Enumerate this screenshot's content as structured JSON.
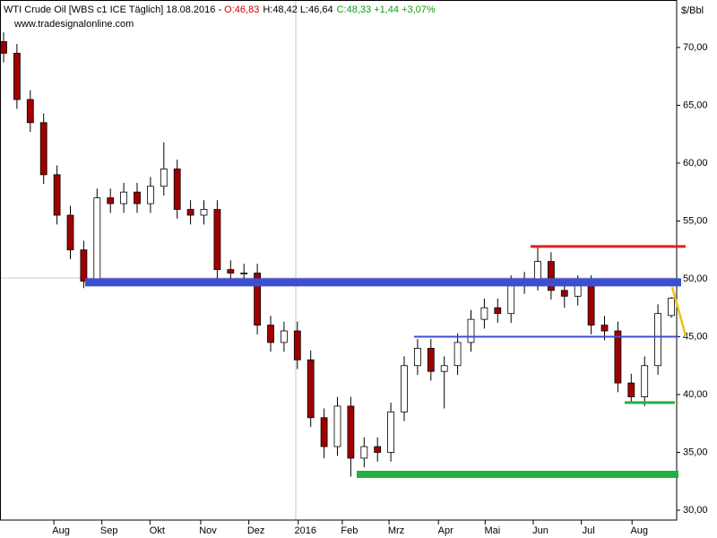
{
  "chart_data": {
    "type": "candlestick",
    "title": "WTI Crude Oil [WBS c1 ICE  Täglich] 18.08.2016 - ",
    "header_open": "O:46,83",
    "header_range": "H:48,42 L:46,64",
    "header_close": "C:48,33 +1,44 +3,07%",
    "source": "www.tradesignalonline.com",
    "y_label": "$/Bbl",
    "up_color": "#ffffff",
    "down_color": "#a00000",
    "open": [
      70.5,
      69.5,
      65.5,
      63.5,
      59,
      55.5,
      52.5,
      49.8,
      57,
      56.5,
      57.5,
      56.5,
      58,
      59.5,
      56,
      55.5,
      56,
      50.8,
      50.5,
      50.5,
      46,
      44.5,
      45.5,
      43,
      38,
      35.5,
      39,
      34.5,
      35.5,
      35,
      38.5,
      42.5,
      44,
      42,
      42.5,
      44.5,
      46.5,
      47.5,
      47,
      49.5,
      49.8,
      51.5,
      49,
      48.5,
      49.5,
      46,
      45.5,
      41,
      39.8,
      42.5,
      46.83
    ],
    "high": [
      71.3,
      70.3,
      66.3,
      64.3,
      59.8,
      56.3,
      53.3,
      57.8,
      57.8,
      58.3,
      58.3,
      58.8,
      61.8,
      60.3,
      56.8,
      56.8,
      56.8,
      51.6,
      51.3,
      51.3,
      46.8,
      46.3,
      46.3,
      43.8,
      38.8,
      39.8,
      39.8,
      36.3,
      36.3,
      39.3,
      43.3,
      44.8,
      44.8,
      43.3,
      45.3,
      47.3,
      48.3,
      48.3,
      50.3,
      50.6,
      52.8,
      52.3,
      49.8,
      50.3,
      50.3,
      46.8,
      46.3,
      41.8,
      43.3,
      47.8,
      48.42
    ],
    "low": [
      68.7,
      64.7,
      62.7,
      58.2,
      54.7,
      51.7,
      49.2,
      49.5,
      55.7,
      55.7,
      55.7,
      55.7,
      57.2,
      55.2,
      54.7,
      54.7,
      50,
      49.7,
      49.7,
      45.2,
      43.7,
      43.7,
      42.2,
      37.2,
      34.5,
      34.7,
      32.9,
      33.7,
      34.2,
      34.2,
      37.7,
      41.7,
      41.2,
      38.8,
      41.7,
      43.7,
      45.7,
      46.2,
      46.2,
      48.7,
      49,
      48.2,
      47.5,
      47.7,
      45.2,
      44.7,
      40.2,
      39.3,
      39,
      41.7,
      46.64
    ],
    "close": [
      69.5,
      65.5,
      63.5,
      59,
      55.5,
      52.5,
      49.8,
      57,
      56.5,
      57.5,
      56.5,
      58,
      59.5,
      56,
      55.5,
      56,
      50.8,
      50.5,
      50.5,
      46,
      44.5,
      45.5,
      43,
      38,
      35.5,
      39,
      34.5,
      35.5,
      35,
      38.5,
      42.5,
      44,
      42,
      42.5,
      44.5,
      46.5,
      47.5,
      47,
      49.5,
      49.8,
      51.5,
      49,
      48.5,
      49.5,
      46,
      45.5,
      41,
      39.8,
      42.5,
      47,
      48.33
    ],
    "xticks": [
      {
        "value": 4.3,
        "label": "Aug"
      },
      {
        "value": 7.9,
        "label": "Sep"
      },
      {
        "value": 11.5,
        "label": "Okt"
      },
      {
        "value": 15.3,
        "label": "Nov"
      },
      {
        "value": 18.9,
        "label": "Dez"
      },
      {
        "value": 22.6,
        "label": "2016"
      },
      {
        "value": 25.9,
        "label": "Feb"
      },
      {
        "value": 29.4,
        "label": "Mrz"
      },
      {
        "value": 33.1,
        "label": "Apr"
      },
      {
        "value": 36.6,
        "label": "Mai"
      },
      {
        "value": 40.2,
        "label": "Jun"
      },
      {
        "value": 43.8,
        "label": "Jul"
      },
      {
        "value": 47.6,
        "label": "Aug"
      }
    ],
    "ylim": [
      29.15,
      74.1
    ],
    "yticks": [
      {
        "value": 30,
        "label": "30,00"
      },
      {
        "value": 35,
        "label": "35,00"
      },
      {
        "value": 40,
        "label": "40,00"
      },
      {
        "value": 45,
        "label": "45,00"
      },
      {
        "value": 50,
        "label": "50,00"
      },
      {
        "value": 55,
        "label": "55,00"
      },
      {
        "value": 60,
        "label": "60,00"
      },
      {
        "value": 65,
        "label": "65,00"
      },
      {
        "value": 70,
        "label": "70,00"
      }
    ],
    "levels": [
      {
        "values": [
          49.7,
          49.7
        ],
        "color": "#3d4fcf"
      },
      {
        "values": [
          45.0,
          45.0
        ],
        "color": "#3d4fcf"
      },
      {
        "values": [
          52.8,
          52.8
        ],
        "color": "#e02020"
      },
      {
        "values": [
          33.1,
          33.1
        ],
        "color": "#22b040"
      },
      {
        "values": [
          39.3,
          39.3
        ],
        "color": "#22b040"
      },
      {
        "values": [
          49.3,
          45.1
        ],
        "color": "#f0c020"
      }
    ]
  }
}
